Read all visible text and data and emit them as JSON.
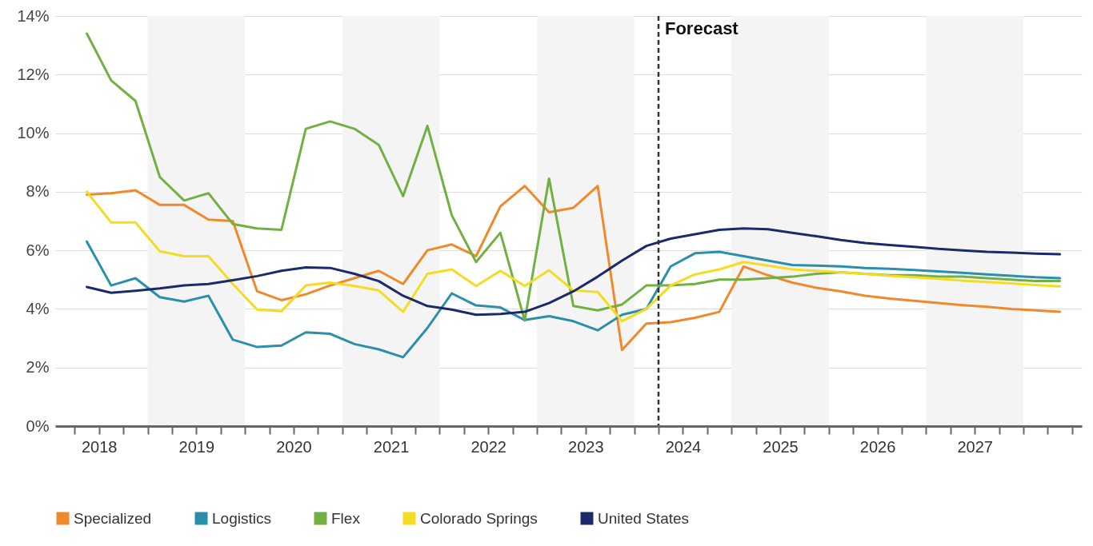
{
  "chart_data": {
    "type": "line",
    "x": [
      2018.375,
      2018.625,
      2018.875,
      2019.125,
      2019.375,
      2019.625,
      2019.875,
      2020.125,
      2020.375,
      2020.625,
      2020.875,
      2021.125,
      2021.375,
      2021.625,
      2021.875,
      2022.125,
      2022.375,
      2022.625,
      2022.875,
      2023.125,
      2023.375,
      2023.625,
      2023.875,
      2024.125,
      2024.375,
      2024.625,
      2024.875,
      2025.125,
      2025.375,
      2025.625,
      2025.875,
      2026.125,
      2026.375,
      2026.625,
      2026.875,
      2027.125,
      2027.375,
      2027.625,
      2027.875,
      2028.125,
      2028.375
    ],
    "series": [
      {
        "name": "Specialized",
        "color": "#f0892a",
        "values": [
          7.9,
          7.95,
          8.05,
          7.55,
          7.55,
          7.05,
          7.0,
          4.6,
          4.3,
          4.5,
          4.8,
          5.05,
          5.3,
          4.85,
          6.0,
          6.2,
          5.8,
          7.5,
          8.2,
          7.3,
          7.45,
          8.2,
          2.6,
          3.5,
          3.55,
          3.7,
          3.9,
          5.45,
          5.15,
          4.9,
          4.72,
          4.6,
          4.45,
          4.35,
          4.28,
          4.2,
          4.13,
          4.07,
          4.0,
          3.95,
          3.9
        ]
      },
      {
        "name": "Logistics",
        "color": "#2a8fab",
        "values": [
          6.3,
          4.8,
          5.05,
          4.4,
          4.25,
          4.45,
          2.95,
          2.7,
          2.75,
          3.2,
          3.15,
          2.8,
          2.62,
          2.35,
          3.35,
          4.53,
          4.12,
          4.05,
          3.62,
          3.75,
          3.58,
          3.27,
          3.8,
          4.0,
          5.45,
          5.9,
          5.95,
          5.8,
          5.65,
          5.5,
          5.48,
          5.45,
          5.4,
          5.37,
          5.33,
          5.28,
          5.23,
          5.18,
          5.13,
          5.08,
          5.05
        ]
      },
      {
        "name": "Flex",
        "color": "#72b043",
        "values": [
          13.4,
          11.8,
          11.1,
          8.5,
          7.7,
          7.95,
          6.9,
          6.75,
          6.7,
          10.15,
          10.4,
          10.15,
          9.6,
          7.85,
          10.25,
          7.2,
          5.6,
          6.6,
          3.6,
          8.45,
          4.1,
          3.95,
          4.15,
          4.8,
          4.8,
          4.85,
          5.0,
          5.0,
          5.05,
          5.1,
          5.2,
          5.25,
          5.2,
          5.15,
          5.15,
          5.1,
          5.1,
          5.05,
          5.0,
          4.95,
          4.95
        ]
      },
      {
        "name": "Colorado Springs",
        "color": "#f5dc22",
        "values": [
          8.0,
          6.95,
          6.95,
          5.97,
          5.8,
          5.8,
          4.85,
          3.98,
          3.92,
          4.8,
          4.9,
          4.78,
          4.63,
          3.9,
          5.2,
          5.35,
          4.78,
          5.3,
          4.78,
          5.32,
          4.63,
          4.58,
          3.58,
          4.0,
          4.8,
          5.18,
          5.35,
          5.6,
          5.48,
          5.35,
          5.3,
          5.25,
          5.2,
          5.13,
          5.08,
          5.03,
          4.97,
          4.92,
          4.87,
          4.82,
          4.77
        ]
      },
      {
        "name": "United States",
        "color": "#1b2a6b",
        "values": [
          4.75,
          4.55,
          4.62,
          4.7,
          4.8,
          4.85,
          4.98,
          5.12,
          5.3,
          5.42,
          5.4,
          5.2,
          4.95,
          4.45,
          4.1,
          3.98,
          3.8,
          3.83,
          3.9,
          4.2,
          4.6,
          5.1,
          5.65,
          6.15,
          6.4,
          6.55,
          6.7,
          6.75,
          6.72,
          6.6,
          6.48,
          6.35,
          6.25,
          6.18,
          6.12,
          6.05,
          6.0,
          5.95,
          5.92,
          5.89,
          5.87
        ]
      }
    ],
    "xlim": [
      2018.05,
      2028.6
    ],
    "xticks": [
      {
        "value": 2018.25,
        "label": null
      },
      {
        "value": 2018.5,
        "label": "2018"
      },
      {
        "value": 2018.75,
        "label": null
      },
      {
        "value": 2019,
        "label": null
      },
      {
        "value": 2019.25,
        "label": null
      },
      {
        "value": 2019.5,
        "label": "2019"
      },
      {
        "value": 2019.75,
        "label": null
      },
      {
        "value": 2020,
        "label": null
      },
      {
        "value": 2020.25,
        "label": null
      },
      {
        "value": 2020.5,
        "label": "2020"
      },
      {
        "value": 2020.75,
        "label": null
      },
      {
        "value": 2021,
        "label": null
      },
      {
        "value": 2021.25,
        "label": null
      },
      {
        "value": 2021.5,
        "label": "2021"
      },
      {
        "value": 2021.75,
        "label": null
      },
      {
        "value": 2022,
        "label": null
      },
      {
        "value": 2022.25,
        "label": null
      },
      {
        "value": 2022.5,
        "label": "2022"
      },
      {
        "value": 2022.75,
        "label": null
      },
      {
        "value": 2023,
        "label": null
      },
      {
        "value": 2023.25,
        "label": null
      },
      {
        "value": 2023.5,
        "label": "2023"
      },
      {
        "value": 2023.75,
        "label": null
      },
      {
        "value": 2024,
        "label": null
      },
      {
        "value": 2024.25,
        "label": null
      },
      {
        "value": 2024.5,
        "label": "2024"
      },
      {
        "value": 2024.75,
        "label": null
      },
      {
        "value": 2025,
        "label": null
      },
      {
        "value": 2025.25,
        "label": null
      },
      {
        "value": 2025.5,
        "label": "2025"
      },
      {
        "value": 2025.75,
        "label": null
      },
      {
        "value": 2026,
        "label": null
      },
      {
        "value": 2026.25,
        "label": null
      },
      {
        "value": 2026.5,
        "label": "2026"
      },
      {
        "value": 2026.75,
        "label": null
      },
      {
        "value": 2027,
        "label": null
      },
      {
        "value": 2027.25,
        "label": null
      },
      {
        "value": 2027.5,
        "label": "2027"
      },
      {
        "value": 2027.75,
        "label": null
      },
      {
        "value": 2028,
        "label": null
      },
      {
        "value": 2028.25,
        "label": null
      },
      {
        "value": 2028.5,
        "label": null
      }
    ],
    "ylim": [
      0,
      14
    ],
    "yticks": [
      {
        "value": 0,
        "label": "0%"
      },
      {
        "value": 2,
        "label": "2%"
      },
      {
        "value": 4,
        "label": "4%"
      },
      {
        "value": 6,
        "label": "6%"
      },
      {
        "value": 8,
        "label": "8%"
      },
      {
        "value": 10,
        "label": "10%"
      },
      {
        "value": 12,
        "label": "12%"
      },
      {
        "value": 14,
        "label": "14%"
      }
    ],
    "grid": "y",
    "legend": "bottom",
    "ref_lines": [
      {
        "axis": "x",
        "value": 2024.25,
        "label": "Forecast",
        "color": "#333333",
        "line_style": "dashed"
      }
    ],
    "bands": [
      {
        "axis": "x",
        "from": 2019,
        "to": 2020,
        "label": null,
        "color": "#f4f4f4"
      },
      {
        "axis": "x",
        "from": 2021,
        "to": 2022,
        "label": null,
        "color": "#f4f4f4"
      },
      {
        "axis": "x",
        "from": 2023,
        "to": 2024,
        "label": null,
        "color": "#f4f4f4"
      },
      {
        "axis": "x",
        "from": 2025,
        "to": 2026,
        "label": null,
        "color": "#f4f4f4"
      },
      {
        "axis": "x",
        "from": 2027,
        "to": 2028,
        "label": null,
        "color": "#f4f4f4"
      }
    ]
  }
}
